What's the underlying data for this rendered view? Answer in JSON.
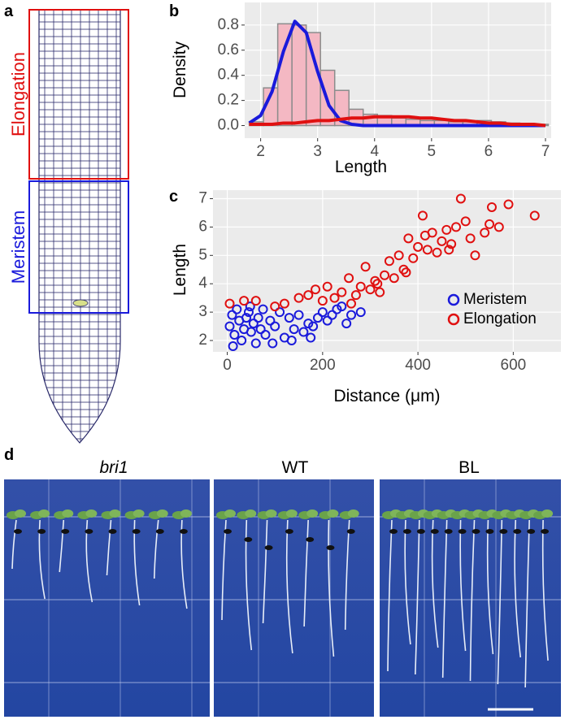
{
  "panel_labels": [
    "a",
    "b",
    "c",
    "d"
  ],
  "panel_a": {
    "labels": [
      "Elongation",
      "Meristem"
    ]
  },
  "panel_d": {
    "labels": [
      "bri1",
      "WT",
      "BL"
    ]
  },
  "chart_data": [
    {
      "type": "histogram",
      "x_label": "Length",
      "y_label": "Density",
      "bins": [
        1.8,
        2.05,
        2.3,
        2.55,
        2.8,
        3.05,
        3.3,
        3.55,
        3.8,
        4.05,
        4.3,
        4.55,
        4.8,
        5.05,
        5.3,
        5.55,
        5.8,
        6.05,
        6.3,
        6.55,
        6.8,
        7.05
      ],
      "values": [
        0.03,
        0.3,
        0.81,
        0.8,
        0.74,
        0.44,
        0.28,
        0.13,
        0.09,
        0.08,
        0.06,
        0.05,
        0.04,
        0.04,
        0.03,
        0.03,
        0.04,
        0.03,
        0.02,
        0.01,
        0.01
      ],
      "color": "#f4b8c3",
      "edgecolor": "#8c8c8c",
      "curve_x": [
        1.8,
        2.0,
        2.2,
        2.4,
        2.6,
        2.8,
        3.0,
        3.2,
        3.4,
        3.6,
        3.8,
        4.0,
        4.2,
        4.4,
        4.6,
        4.8,
        5.0,
        5.2,
        5.4,
        5.6,
        5.8,
        6.0,
        6.2,
        6.4,
        6.6,
        6.8,
        7.0
      ],
      "curves": [
        {
          "color": "#1a1adb",
          "values": [
            0.02,
            0.08,
            0.27,
            0.59,
            0.83,
            0.74,
            0.43,
            0.16,
            0.04,
            0.01,
            0,
            0,
            0,
            0,
            0,
            0,
            0,
            0,
            0,
            0,
            0,
            0,
            0,
            0,
            0,
            0,
            0
          ]
        },
        {
          "color": "#e01010",
          "values": [
            0.01,
            0.01,
            0.01,
            0.02,
            0.02,
            0.03,
            0.04,
            0.04,
            0.05,
            0.06,
            0.06,
            0.07,
            0.07,
            0.07,
            0.07,
            0.06,
            0.06,
            0.05,
            0.04,
            0.04,
            0.03,
            0.02,
            0.02,
            0.01,
            0.01,
            0.01,
            0
          ]
        }
      ],
      "xlim": [
        1.72,
        7.1
      ],
      "ylim": [
        -0.1,
        0.98
      ],
      "xticks": [
        2,
        3,
        4,
        5,
        6,
        7
      ],
      "yticks": [
        {
          "value": 0,
          "label": "0.0"
        },
        0.2,
        0.4,
        0.6,
        0.8
      ],
      "grid": true,
      "background": "#ebebeb"
    },
    {
      "type": "scatter",
      "x_label": "Distance (μm)",
      "y_label": "Length",
      "series": [
        {
          "name": "Meristem",
          "color": "#1a1adb",
          "x": [
            5,
            10,
            15,
            20,
            25,
            30,
            35,
            40,
            45,
            50,
            55,
            60,
            65,
            70,
            75,
            80,
            90,
            100,
            110,
            120,
            130,
            140,
            150,
            160,
            170,
            180,
            190,
            200,
            210,
            220,
            230,
            240,
            250,
            260,
            280,
            12,
            48,
            95,
            135,
            175
          ],
          "values": [
            2.5,
            2.9,
            2.2,
            3.1,
            2.7,
            2.0,
            2.4,
            2.8,
            3.0,
            2.3,
            2.6,
            1.9,
            2.8,
            2.4,
            3.1,
            2.2,
            2.7,
            2.5,
            3.0,
            2.1,
            2.8,
            2.4,
            2.9,
            2.3,
            2.6,
            2.5,
            2.8,
            3.0,
            2.7,
            2.9,
            3.1,
            3.2,
            2.6,
            2.9,
            3.0,
            1.8,
            3.2,
            1.9,
            2.0,
            2.1
          ]
        },
        {
          "name": "Elongation",
          "color": "#e01010",
          "x": [
            5,
            60,
            120,
            150,
            170,
            185,
            200,
            210,
            225,
            240,
            255,
            270,
            280,
            290,
            300,
            310,
            320,
            330,
            340,
            350,
            360,
            370,
            380,
            390,
            400,
            410,
            420,
            430,
            440,
            450,
            460,
            470,
            480,
            490,
            500,
            510,
            520,
            540,
            550,
            555,
            570,
            590,
            645,
            35,
            100,
            260,
            315,
            375,
            415,
            465
          ],
          "values": [
            3.3,
            3.4,
            3.3,
            3.5,
            3.6,
            3.8,
            3.4,
            3.9,
            3.5,
            3.7,
            4.2,
            3.6,
            3.9,
            4.6,
            3.8,
            4.1,
            3.7,
            4.3,
            4.8,
            4.2,
            5.0,
            4.5,
            5.6,
            4.9,
            5.3,
            6.4,
            5.2,
            5.8,
            5.1,
            5.5,
            5.9,
            5.4,
            6.0,
            7.0,
            6.2,
            5.6,
            5.0,
            5.8,
            6.1,
            6.7,
            6.0,
            6.8,
            6.4,
            3.4,
            3.2,
            3.3,
            4.0,
            4.4,
            5.7,
            5.2
          ]
        }
      ],
      "xlim": [
        -30,
        700
      ],
      "ylim": [
        1.6,
        7.3
      ],
      "xticks": [
        0,
        200,
        400,
        600
      ],
      "yticks": [
        2,
        3,
        4,
        5,
        6,
        7
      ],
      "grid": true,
      "background": "#ebebeb",
      "legend": "bottom-right"
    }
  ]
}
